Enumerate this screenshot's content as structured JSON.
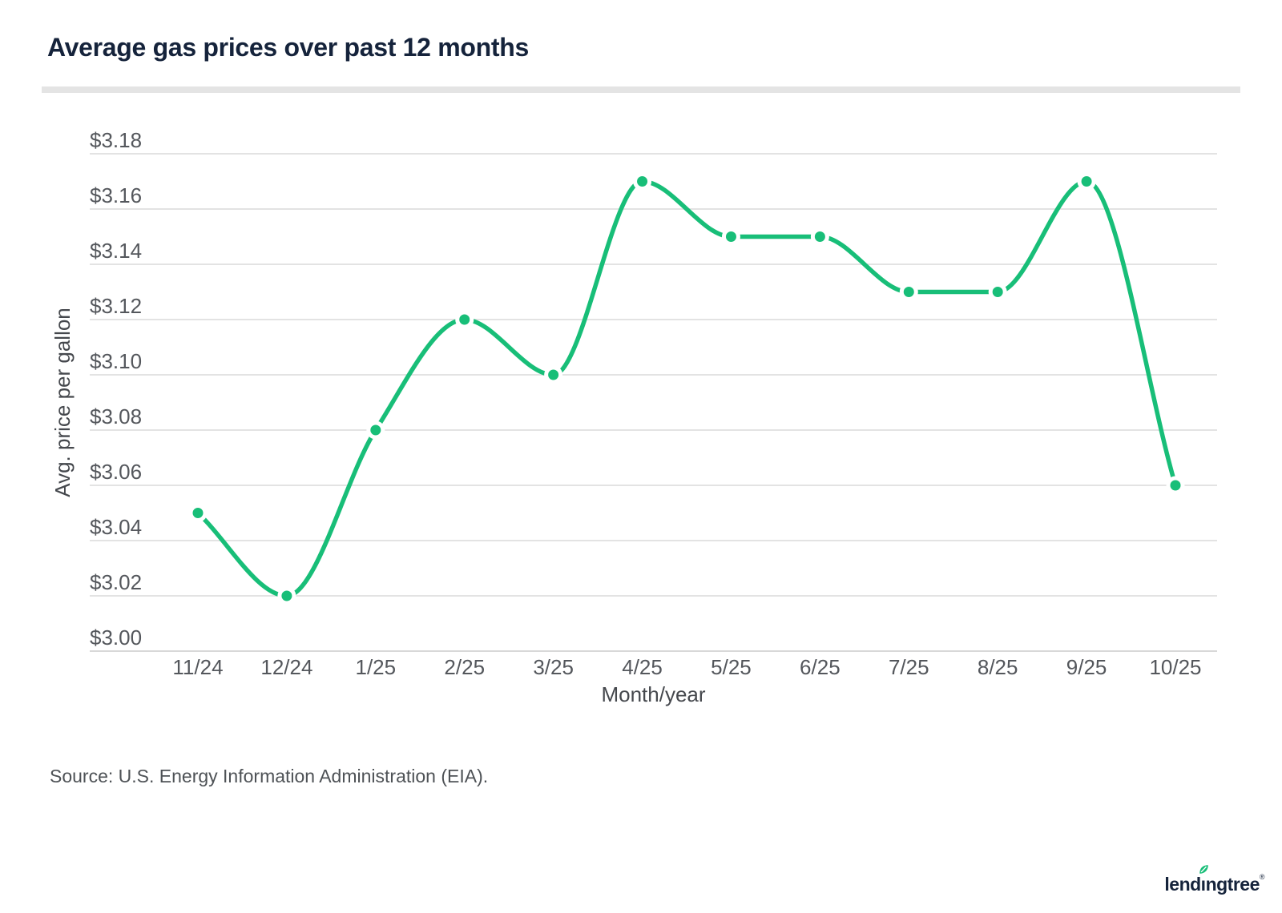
{
  "page": {
    "title": "Average gas prices over past 12 months",
    "source_note": "Source: U.S. Energy Information Administration (EIA)."
  },
  "brand": {
    "logo_text": "lendingtree",
    "logo_text_before_leaf": "lend",
    "logo_text_i": "ı",
    "logo_text_after_leaf": "ngtree",
    "registered_mark": "®",
    "leaf_icon": "leaf-icon",
    "navy": "#15233b",
    "green": "#18be78"
  },
  "chart_data": {
    "type": "line",
    "title": "Average gas prices over past 12 months",
    "categories": [
      "11/24",
      "12/24",
      "1/25",
      "2/25",
      "3/25",
      "4/25",
      "5/25",
      "6/25",
      "7/25",
      "8/25",
      "9/25",
      "10/25"
    ],
    "values": [
      3.05,
      3.02,
      3.08,
      3.12,
      3.1,
      3.17,
      3.15,
      3.15,
      3.13,
      3.13,
      3.17,
      3.06
    ],
    "xlabel": "Month/year",
    "ylabel": "Avg. price per gallon",
    "ylim": [
      3.0,
      3.18
    ],
    "ytick_interval": 0.02,
    "ytick_prefix": "$",
    "grid": "horizontal",
    "legend": "none",
    "line_color": "#18be78",
    "marker_color": "#18be78",
    "gridline_color": "#e3e3e3",
    "baseline_color": "#d8d8d8",
    "tick_label_color": "#54575c"
  }
}
